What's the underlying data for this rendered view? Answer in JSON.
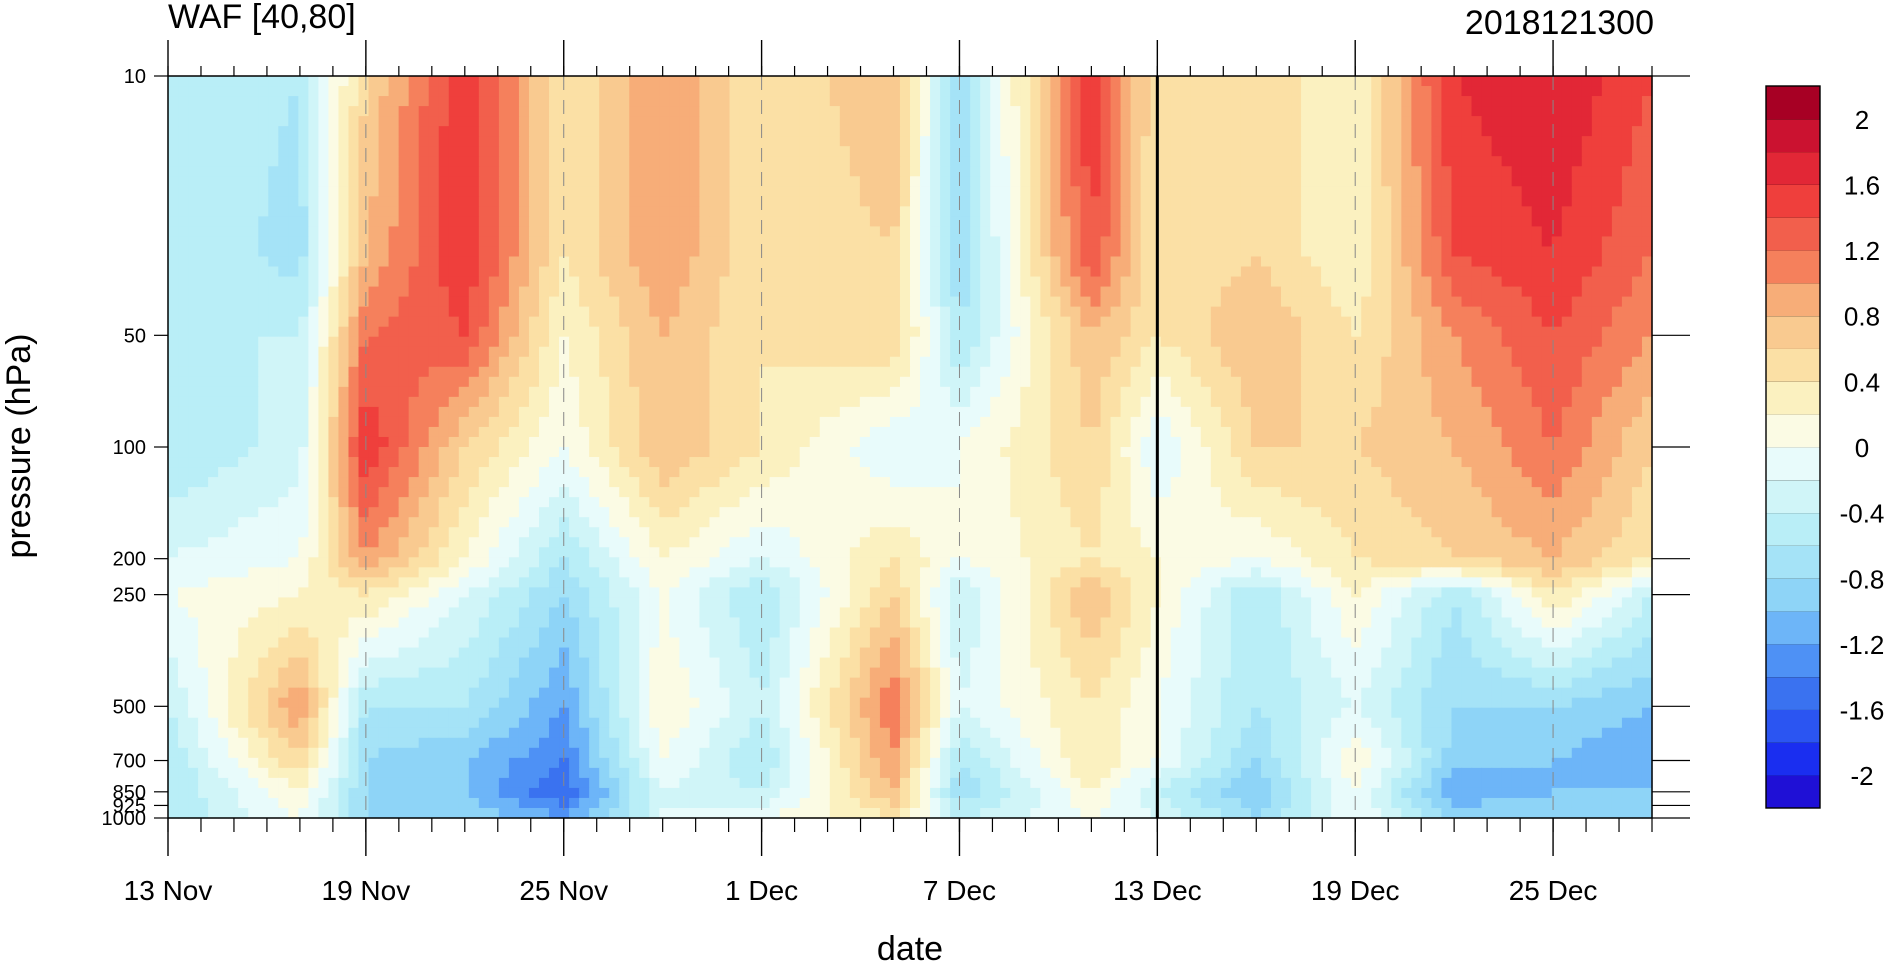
{
  "chart_data": {
    "type": "heatmap",
    "title": "WAF [40,80]",
    "subtitle": "2018121300",
    "xlabel": "date",
    "ylabel": "pressure (hPa)",
    "x_ticks": [
      "13 Nov",
      "19 Nov",
      "25 Nov",
      "1 Dec",
      "7 Dec",
      "13 Dec",
      "19 Dec",
      "25 Dec"
    ],
    "x_tick_dates": [
      "2018-11-13",
      "2018-11-19",
      "2018-11-25",
      "2018-12-01",
      "2018-12-07",
      "2018-12-13",
      "2018-12-19",
      "2018-12-25"
    ],
    "x_range": [
      "2018-11-13",
      "2018-12-28"
    ],
    "y_scale": "log",
    "y_reversed": true,
    "y_range": [
      1000,
      10
    ],
    "y_ticks": [
      10,
      50,
      100,
      200,
      250,
      500,
      700,
      850,
      925,
      1000
    ],
    "y_tick_labels": [
      "10",
      "50",
      "100",
      "200",
      "250",
      "500",
      "700",
      "850",
      "925",
      "1000"
    ],
    "marker_date": "2018-12-13",
    "colorbar": {
      "levels": [
        -2.2,
        -2,
        -1.8,
        -1.6,
        -1.4,
        -1.2,
        -1,
        -0.8,
        -0.6,
        -0.4,
        -0.2,
        0,
        0.2,
        0.4,
        0.6,
        0.8,
        1,
        1.2,
        1.4,
        1.6,
        1.8,
        2,
        2.2
      ],
      "colors": [
        "#1f10d6",
        "#1a2ef0",
        "#2b55f2",
        "#3a72f0",
        "#4e91f5",
        "#6db5f8",
        "#8ed4f7",
        "#a5e3f7",
        "#b9eef7",
        "#d0f5f8",
        "#e8fbfb",
        "#fbfbe4",
        "#fbf1c0",
        "#fbe0a5",
        "#f9ca90",
        "#f7ad78",
        "#f5805c",
        "#f25f4c",
        "#ef3f3c",
        "#e22736",
        "#cb1230",
        "#a70024"
      ],
      "labels": [
        "2",
        "1.6",
        "1.2",
        "0.8",
        "0.4",
        "0",
        "-0.4",
        "-0.8",
        "-1.2",
        "-1.6",
        "-2"
      ],
      "label_values": [
        2,
        1.6,
        1.2,
        0.8,
        0.4,
        0,
        -0.4,
        -0.8,
        -1.2,
        -1.6,
        -2
      ]
    },
    "dates": [
      "2018-11-13",
      "2018-11-17",
      "2018-11-19",
      "2018-11-22",
      "2018-11-25",
      "2018-11-28",
      "2018-12-01",
      "2018-12-05",
      "2018-12-07",
      "2018-12-11",
      "2018-12-13",
      "2018-12-16",
      "2018-12-19",
      "2018-12-22",
      "2018-12-25",
      "2018-12-28"
    ],
    "levels": [
      10,
      30,
      50,
      100,
      200,
      250,
      500,
      700,
      850,
      1000
    ],
    "values": [
      [
        -0.4,
        -0.6,
        0.6,
        1.6,
        0.4,
        1.0,
        0.4,
        0.8,
        -0.8,
        1.6,
        0.4,
        0.6,
        0.2,
        1.6,
        1.8,
        1.4
      ],
      [
        -0.4,
        -0.7,
        0.8,
        1.6,
        0.4,
        1.0,
        0.4,
        0.6,
        -0.8,
        1.4,
        0.4,
        0.6,
        0.2,
        1.4,
        1.6,
        1.2
      ],
      [
        -0.4,
        -0.4,
        1.2,
        1.4,
        0.2,
        0.8,
        0.4,
        0.6,
        -0.6,
        0.8,
        0.4,
        0.8,
        0.4,
        1.0,
        1.4,
        1.0
      ],
      [
        -0.6,
        -0.3,
        1.6,
        0.6,
        0.0,
        0.8,
        0.4,
        -0.2,
        0.0,
        0.6,
        -0.2,
        0.6,
        0.6,
        0.8,
        1.2,
        0.6
      ],
      [
        -0.2,
        0.0,
        1.0,
        0.2,
        -0.6,
        0.2,
        -0.2,
        0.4,
        0.0,
        0.4,
        0.2,
        0.0,
        0.4,
        0.6,
        0.8,
        0.4
      ],
      [
        0.0,
        0.2,
        0.4,
        -0.2,
        -0.8,
        0.0,
        -0.6,
        0.6,
        -0.4,
        0.8,
        0.2,
        -0.6,
        0.2,
        -0.6,
        0.4,
        -0.4
      ],
      [
        -0.4,
        1.0,
        -0.6,
        -0.6,
        -1.2,
        0.2,
        -0.4,
        1.2,
        -0.2,
        0.4,
        0.0,
        -0.6,
        -0.2,
        -0.8,
        -0.8,
        -1.0
      ],
      [
        -0.6,
        0.6,
        -0.8,
        -1.0,
        -1.4,
        0.0,
        -0.6,
        1.0,
        -0.6,
        0.4,
        0.0,
        -0.8,
        0.2,
        -0.9,
        -1.0,
        -1.2
      ],
      [
        -0.6,
        0.2,
        -0.8,
        -1.0,
        -1.6,
        -0.2,
        -0.4,
        0.8,
        -0.8,
        0.2,
        -0.4,
        -1.0,
        0.0,
        -1.2,
        -1.0,
        -1.0
      ],
      [
        -0.6,
        0.0,
        -0.8,
        -0.8,
        -1.2,
        -0.2,
        0.0,
        0.4,
        -0.4,
        0.0,
        -0.2,
        -0.8,
        0.0,
        -0.8,
        -0.8,
        -0.8
      ]
    ]
  }
}
